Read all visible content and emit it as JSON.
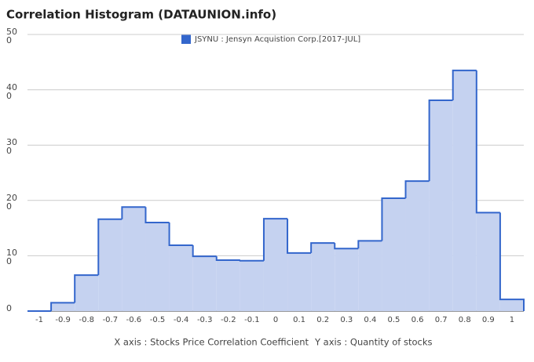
{
  "chart_data": {
    "type": "histogram",
    "title": "Correlation Histogram (DATAUNION.info)",
    "xlabel": "X axis : Stocks Price Correlation Coefficient",
    "ylabel": "Y axis : Quantity of stocks",
    "series": [
      {
        "name": "JSYNU : Jensyn Acquistion Corp.[2017-JUL]",
        "color": "#3366cc",
        "bins": [
          -1.05,
          -0.95,
          -0.85,
          -0.75,
          -0.65,
          -0.55,
          -0.45,
          -0.35,
          -0.25,
          -0.15,
          -0.05,
          0.05,
          0.15,
          0.25,
          0.35,
          0.45,
          0.55,
          0.65,
          0.75,
          0.85,
          0.95,
          1.05
        ],
        "values": [
          0,
          15,
          65,
          166,
          188,
          160,
          119,
          99,
          92,
          91,
          167,
          105,
          123,
          113,
          127,
          204,
          235,
          381,
          435,
          178,
          21
        ]
      }
    ],
    "xlim": [
      -1.05,
      1.05
    ],
    "xticks": [
      -1,
      -0.9,
      -0.8,
      -0.7,
      -0.6,
      -0.5,
      -0.4,
      -0.3,
      -0.2,
      -0.1,
      0,
      0.1,
      0.2,
      0.3,
      0.4,
      0.5,
      0.6,
      0.7,
      0.8,
      0.9,
      1
    ],
    "ylim": [
      0,
      500
    ],
    "yticks": [
      0,
      100,
      200,
      300,
      400,
      500
    ],
    "grid": true
  }
}
